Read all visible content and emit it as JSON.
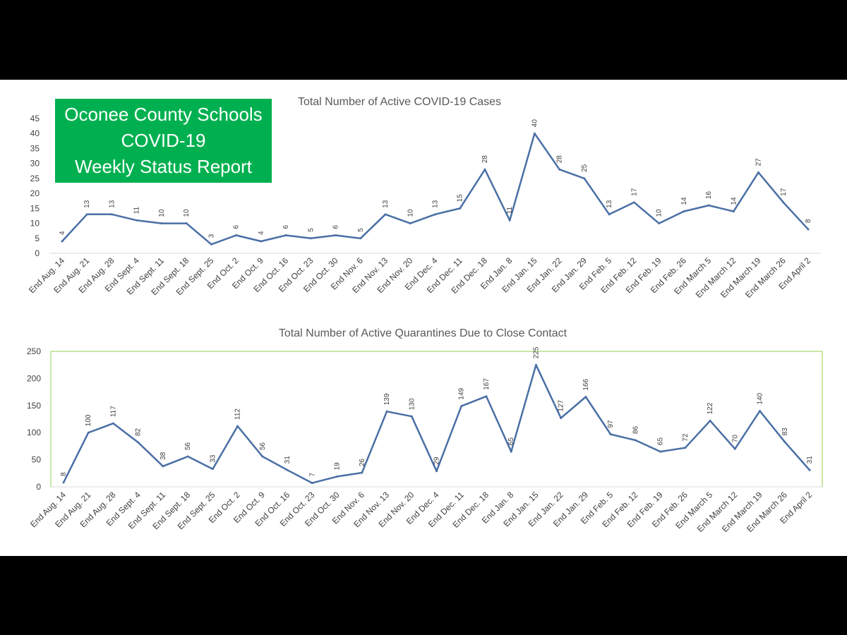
{
  "banner": {
    "line1": "Oconee County Schools",
    "line2": "COVID-19",
    "line3": "Weekly Status Report",
    "color": "#00b050"
  },
  "chart_data": [
    {
      "type": "line",
      "title": "Total Number of Active COVID-19 Cases",
      "xlabel": "",
      "ylabel": "",
      "ylim": [
        0,
        45
      ],
      "yticks": [
        0,
        5,
        10,
        15,
        20,
        25,
        30,
        35,
        40,
        45
      ],
      "grid": false,
      "line_color": "#4a6fa5",
      "categories": [
        "End Aug. 14",
        "End Aug. 21",
        "End Aug. 28",
        "End Sept. 4",
        "End Sept. 11",
        "End Sept. 18",
        "End Sept. 25",
        "End Oct. 2",
        "End Oct. 9",
        "End Oct. 16",
        "End Oct. 23",
        "End Oct. 30",
        "End Nov. 6",
        "End Nov. 13",
        "End Nov. 20",
        "End Dec. 4",
        "End Dec. 11",
        "End Dec. 18",
        "End Jan. 8",
        "End Jan. 15",
        "End Jan. 22",
        "End Jan. 29",
        "End Feb. 5",
        "End Feb. 12",
        "End Feb. 19",
        "End Feb. 26",
        "End March 5",
        "End March 12",
        "End March 19",
        "End March 26",
        "End April 2"
      ],
      "values": [
        4,
        13,
        13,
        11,
        10,
        10,
        3,
        6,
        4,
        6,
        5,
        6,
        5,
        13,
        10,
        13,
        15,
        28,
        11,
        40,
        28,
        25,
        13,
        17,
        10,
        14,
        16,
        14,
        27,
        17,
        8
      ]
    },
    {
      "type": "line",
      "title": "Total Number of Active Quarantines Due to Close Contact",
      "xlabel": "",
      "ylabel": "",
      "ylim": [
        0,
        250
      ],
      "yticks": [
        0,
        50,
        100,
        150,
        200,
        250
      ],
      "grid": false,
      "line_color": "#4a6fa5",
      "border_color": "#92d050",
      "categories": [
        "End Aug. 14",
        "End Aug. 21",
        "End Aug. 28",
        "End Sept. 4",
        "End Sept. 11",
        "End Sept. 18",
        "End Sept. 25",
        "End Oct. 2",
        "End Oct. 9",
        "End Oct. 16",
        "End Oct. 23",
        "End Oct. 30",
        "End Nov. 6",
        "End Nov. 13",
        "End Nov. 20",
        "End Dec. 4",
        "End Dec. 11",
        "End Dec. 18",
        "End Jan. 8",
        "End Jan. 15",
        "End Jan. 22",
        "End Jan. 29",
        "End Feb. 5",
        "End Feb. 12",
        "End Feb. 19",
        "End Feb. 26",
        "End March 5",
        "End March 12",
        "End March 19",
        "End March 26",
        "End April 2"
      ],
      "values": [
        8,
        100,
        117,
        82,
        38,
        56,
        33,
        112,
        56,
        31,
        7,
        19,
        26,
        139,
        130,
        29,
        149,
        167,
        65,
        225,
        127,
        166,
        97,
        86,
        65,
        72,
        122,
        70,
        140,
        83,
        31
      ]
    }
  ]
}
